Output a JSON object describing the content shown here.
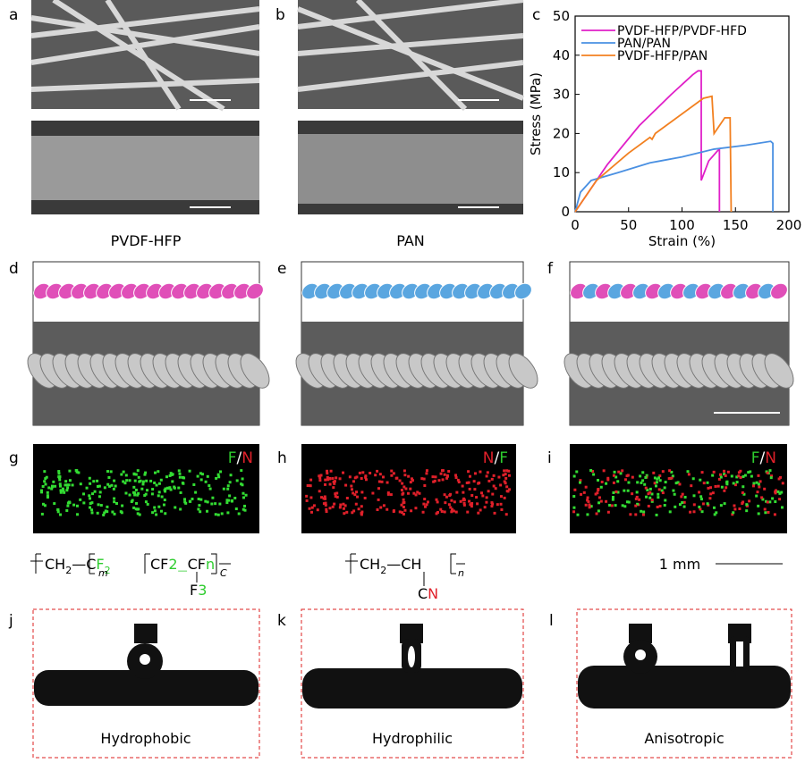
{
  "panels": [
    "a",
    "b",
    "c",
    "d",
    "e",
    "f",
    "g",
    "h",
    "i",
    "j",
    "k",
    "l"
  ],
  "captions": [
    "PVDF-HFP",
    "PAN",
    "Hydrophobic",
    "Hydrophilic",
    "Anisotropic"
  ],
  "eds": [
    [
      "F",
      "/",
      "N"
    ],
    [
      "N",
      "/",
      "F"
    ],
    [
      "F",
      "/",
      "N"
    ]
  ],
  "formulas": [
    [
      "CH",
      "2",
      "—",
      "C",
      "F",
      "2",
      "m",
      "CF",
      "2",
      "—",
      "C",
      "F",
      "n",
      "C",
      "F",
      "3"
    ],
    [
      "CH",
      "2",
      "—",
      "CH",
      "n",
      "C",
      "N"
    ]
  ],
  "scale": "1 mm",
  "chart_data": {
    "type": "line",
    "xlabel": "Strain (%)",
    "ylabel": "Stress (MPa)",
    "xlim": [
      0,
      200
    ],
    "ylim": [
      0,
      50
    ],
    "xticks": [
      0,
      50,
      100,
      150,
      200
    ],
    "yticks": [
      0,
      10,
      20,
      30,
      40,
      50
    ],
    "legend": "top-right",
    "series": [
      {
        "name": "PVDF-HFP/PVDF-HFD",
        "color": "#e020c8",
        "x": [
          0,
          10,
          30,
          60,
          90,
          110,
          115,
          118,
          118,
          125,
          133,
          135,
          135
        ],
        "values": [
          0,
          4,
          12,
          22,
          30,
          35,
          36,
          36,
          8,
          13,
          15.5,
          16,
          0
        ]
      },
      {
        "name": "PAN/PAN",
        "color": "#4a90e2",
        "x": [
          0,
          5,
          15,
          40,
          70,
          80,
          100,
          130,
          160,
          183,
          185,
          185
        ],
        "values": [
          0,
          5,
          8,
          10,
          12.5,
          13,
          14,
          16,
          17,
          18,
          17.5,
          0
        ]
      },
      {
        "name": "PVDF-HFP/PAN",
        "color": "#f28020",
        "x": [
          0,
          20,
          50,
          70,
          72,
          75,
          100,
          120,
          128,
          130,
          135,
          140,
          145,
          146
        ],
        "values": [
          0,
          8,
          15,
          19,
          18.5,
          20,
          25,
          29,
          29.5,
          20,
          22,
          24,
          24,
          0
        ]
      }
    ]
  }
}
